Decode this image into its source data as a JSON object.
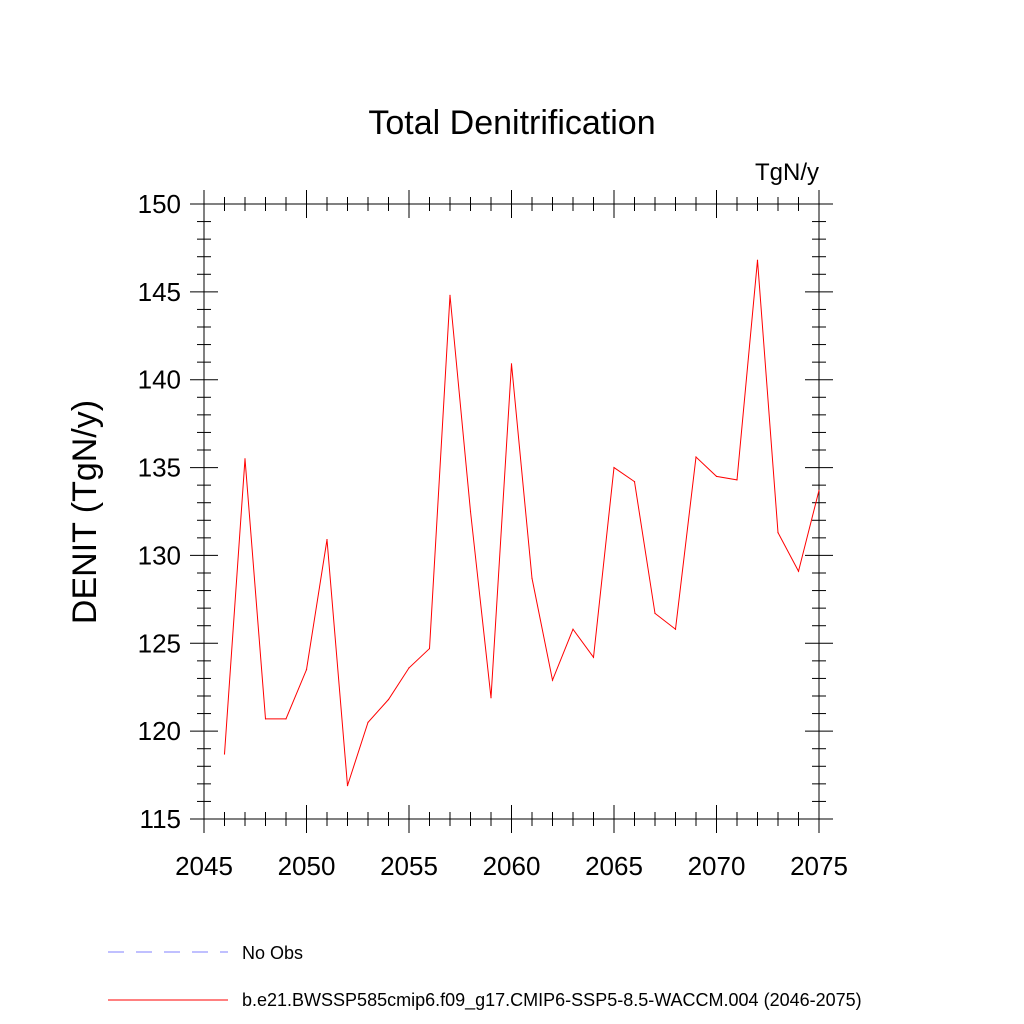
{
  "chart_data": {
    "type": "line",
    "title": "Total Denitrification",
    "units_label": "TgN/y",
    "xlabel": "",
    "ylabel": "DENIT  (TgN/y)",
    "xlim": [
      2045,
      2075
    ],
    "ylim": [
      115,
      150
    ],
    "x_major_ticks": [
      2045,
      2050,
      2055,
      2060,
      2065,
      2070,
      2075
    ],
    "x_tick_labels": [
      "2045",
      "2050",
      "2055",
      "2060",
      "2065",
      "2070",
      "2075"
    ],
    "x_minor_step": 1,
    "y_major_ticks": [
      115,
      120,
      125,
      130,
      135,
      140,
      145,
      150
    ],
    "y_tick_labels": [
      "115",
      "120",
      "125",
      "130",
      "135",
      "140",
      "145",
      "150"
    ],
    "y_minor_step": 1,
    "grid": false,
    "legend_position": "bottom-left",
    "series": [
      {
        "name": "No Obs",
        "color": "#8080ff",
        "style": "dashed",
        "x": [],
        "values": []
      },
      {
        "name": "b.e21.BWSSP585cmip6.f09_g17.CMIP6-SSP5-8.5-WACCM.004 (2046-2075)",
        "color": "#ff0000",
        "style": "solid",
        "x": [
          2046,
          2047,
          2048,
          2049,
          2050,
          2051,
          2052,
          2053,
          2054,
          2055,
          2056,
          2057,
          2058,
          2059,
          2060,
          2061,
          2062,
          2063,
          2064,
          2065,
          2066,
          2067,
          2068,
          2069,
          2070,
          2071,
          2072,
          2073,
          2074,
          2075
        ],
        "values": [
          118.7,
          135.5,
          120.7,
          120.7,
          123.5,
          130.9,
          116.9,
          120.5,
          121.8,
          123.6,
          124.7,
          144.8,
          132.5,
          121.9,
          140.9,
          128.7,
          122.9,
          125.8,
          124.2,
          135.0,
          134.2,
          126.7,
          125.8,
          135.6,
          134.5,
          134.3,
          146.8,
          131.3,
          129.1,
          133.7
        ]
      }
    ]
  }
}
